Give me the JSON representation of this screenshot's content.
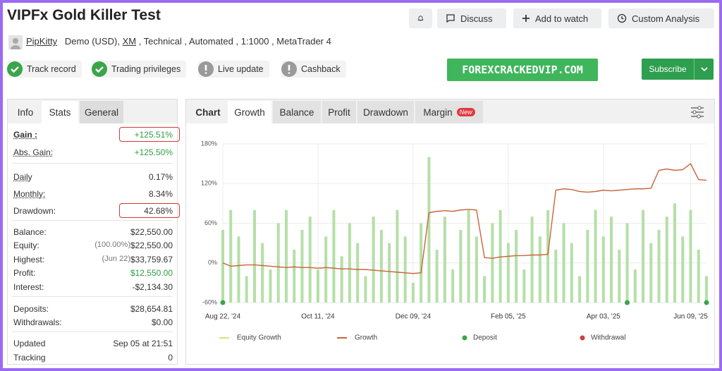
{
  "header": {
    "title": "VIPFx Gold Killer Test",
    "buttons": [
      "Discuss",
      "Add to watch",
      "Custom Analysis"
    ]
  },
  "account": {
    "owner": "PipKitty",
    "prefix": "Demo (USD),",
    "broker": "XM",
    "suffix": ", Technical , Automated , 1:1000 , MetaTrader 4"
  },
  "badges": [
    {
      "label": "Track record",
      "status": "ok"
    },
    {
      "label": "Trading privileges",
      "status": "ok"
    },
    {
      "label": "Live update",
      "status": "off"
    },
    {
      "label": "Cashback",
      "status": "off"
    }
  ],
  "watermark": "FOREXCRACKEDVIP.COM",
  "subscribe": "Subscribe",
  "stats": {
    "tabs": [
      "Info",
      "Stats",
      "General"
    ],
    "active": 1,
    "rows": [
      {
        "label": "Gain :",
        "value": "+125.51%",
        "bold": true,
        "underline": true,
        "green": true,
        "highlight": true
      },
      {
        "label": "Abs. Gain:",
        "value": "+125.50%",
        "underline": true,
        "green": true
      },
      {
        "label": "Daily",
        "value": "0.17%",
        "underline": true
      },
      {
        "label": "Monthly:",
        "value": "8.34%",
        "underline": true
      },
      {
        "label": "Drawdown:",
        "value": "42.68%",
        "highlight": true
      },
      {
        "label": "Balance:",
        "value": "$22,550.00"
      },
      {
        "label": "Equity:",
        "note": "(100.00%)",
        "value": "$22,550.00"
      },
      {
        "label": "Highest:",
        "note": "(Jun 22)",
        "value": "$33,759.67"
      },
      {
        "label": "Profit:",
        "value": "$12,550.00",
        "green": true
      },
      {
        "label": "Interest:",
        "value": "-$2,134.30"
      },
      {
        "label": "Deposits:",
        "value": "$28,654.81"
      },
      {
        "label": "Withdrawals:",
        "value": "$0.00"
      },
      {
        "label": "Updated",
        "value": "Sep 05 at 21:51"
      },
      {
        "label": "Tracking",
        "value": "0"
      }
    ]
  },
  "chart_tabs": {
    "tabs": [
      "Chart",
      "Growth",
      "Balance",
      "Profit",
      "Drawdown",
      "Margin"
    ],
    "active": 1,
    "new_badge": "New"
  },
  "chart_data": {
    "type": "bar-line",
    "grid": true,
    "categories": [
      "Aug 22, '24",
      null,
      null,
      null,
      null,
      null,
      null,
      null,
      null,
      null,
      null,
      null,
      "Oct 11, '24",
      null,
      null,
      null,
      null,
      null,
      null,
      null,
      null,
      null,
      null,
      null,
      "Dec 09, '24",
      null,
      null,
      null,
      null,
      null,
      null,
      null,
      null,
      null,
      null,
      null,
      "Feb 05, '25",
      null,
      null,
      null,
      null,
      null,
      null,
      null,
      null,
      null,
      null,
      null,
      "Apr 03, '25",
      null,
      null,
      null,
      null,
      null,
      null,
      null,
      null,
      null,
      null,
      "Jun 09, '25",
      null,
      null
    ],
    "ylim": [
      -60,
      180
    ],
    "yticks": [
      {
        "value": -60,
        "label": "-60%"
      },
      {
        "value": 0,
        "label": "0%"
      },
      {
        "value": 60,
        "label": "60%"
      },
      {
        "value": 120,
        "label": "120%"
      },
      {
        "value": 180,
        "label": "180%"
      }
    ],
    "series": [
      {
        "name": "Equity Growth",
        "color": "#b5dfa8",
        "legend_color": "#d9e27a",
        "kind": "bar",
        "values": [
          50,
          80,
          40,
          -20,
          80,
          30,
          -10,
          60,
          80,
          20,
          50,
          70,
          -10,
          40,
          80,
          10,
          60,
          30,
          -20,
          70,
          50,
          30,
          80,
          40,
          -30,
          60,
          160,
          20,
          70,
          -10,
          50,
          80,
          40,
          -20,
          60,
          80,
          30,
          50,
          -10,
          70,
          40,
          80,
          20,
          60,
          30,
          -20,
          50,
          80,
          40,
          70,
          20,
          60,
          -10,
          80,
          30,
          50,
          70,
          90,
          40,
          80,
          20,
          -20
        ]
      },
      {
        "name": "Growth",
        "color": "#c8653a",
        "kind": "line",
        "values": [
          0,
          -5,
          -4,
          -3,
          -3,
          -4,
          -5,
          -6,
          -7,
          -6,
          -7,
          -7,
          -8,
          -7,
          -8,
          -9,
          -9,
          -10,
          -10,
          -11,
          -12,
          -13,
          -14,
          -15,
          -16,
          -15,
          76,
          78,
          79,
          78,
          80,
          81,
          80,
          8,
          7,
          9,
          10,
          11,
          11,
          12,
          12,
          13,
          110,
          112,
          111,
          108,
          107,
          108,
          110,
          109,
          110,
          111,
          112,
          112,
          113,
          140,
          142,
          140,
          141,
          150,
          126,
          125
        ]
      },
      {
        "name": "Deposit",
        "color": "#3aa54a",
        "kind": "dot",
        "values": [
          -60,
          null,
          null,
          null,
          null,
          null,
          null,
          null,
          null,
          null,
          null,
          null,
          null,
          null,
          null,
          null,
          null,
          null,
          null,
          null,
          null,
          null,
          null,
          null,
          null,
          null,
          null,
          null,
          null,
          null,
          null,
          null,
          null,
          null,
          null,
          null,
          null,
          null,
          null,
          null,
          null,
          null,
          null,
          null,
          null,
          null,
          null,
          null,
          null,
          null,
          null,
          -60,
          null,
          null,
          null,
          null,
          null,
          null,
          null,
          null,
          null,
          -60
        ]
      },
      {
        "name": "Withdrawal",
        "color": "#d63b3b",
        "kind": "dot",
        "values": [
          null,
          null,
          null,
          null,
          null,
          null,
          null,
          null,
          null,
          null,
          null,
          null,
          null,
          null,
          null,
          null,
          null,
          null,
          null,
          null,
          null,
          null,
          null,
          null,
          null,
          null,
          null,
          null,
          null,
          null,
          null,
          null,
          null,
          null,
          null,
          null,
          null,
          null,
          null,
          null,
          null,
          null,
          null,
          null,
          null,
          null,
          null,
          null,
          null,
          null,
          null,
          null,
          null,
          null,
          null,
          null,
          null,
          null,
          null,
          null,
          null,
          null
        ]
      }
    ]
  }
}
